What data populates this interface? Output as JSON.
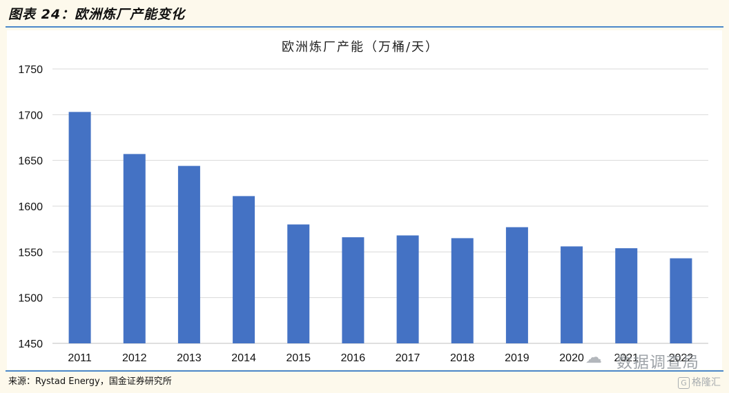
{
  "figure_title": "图表 24：欧洲炼厂产能变化",
  "source_text": "来源：Rystad Energy，国金证券研究所",
  "watermark": {
    "main": "数据调查局",
    "icon": "wechat-icon",
    "secondary": "格隆汇",
    "secondary_icon": "logo-g-icon"
  },
  "colors": {
    "bar": "#4472c4",
    "rule": "#4a87c9",
    "grid": "#d9d9d9",
    "background": "#fdf9ec"
  },
  "chart_data": {
    "type": "bar",
    "title": "欧洲炼厂产能（万桶/天）",
    "xlabel": "",
    "ylabel": "",
    "categories": [
      "2011",
      "2012",
      "2013",
      "2014",
      "2015",
      "2016",
      "2017",
      "2018",
      "2019",
      "2020",
      "2021",
      "2022"
    ],
    "values": [
      1703,
      1657,
      1644,
      1611,
      1580,
      1566,
      1568,
      1565,
      1577,
      1556,
      1554,
      1543
    ],
    "ylim": [
      1450,
      1750
    ],
    "yticks": [
      1450,
      1500,
      1550,
      1600,
      1650,
      1700,
      1750
    ],
    "grid": true,
    "legend": "none"
  }
}
